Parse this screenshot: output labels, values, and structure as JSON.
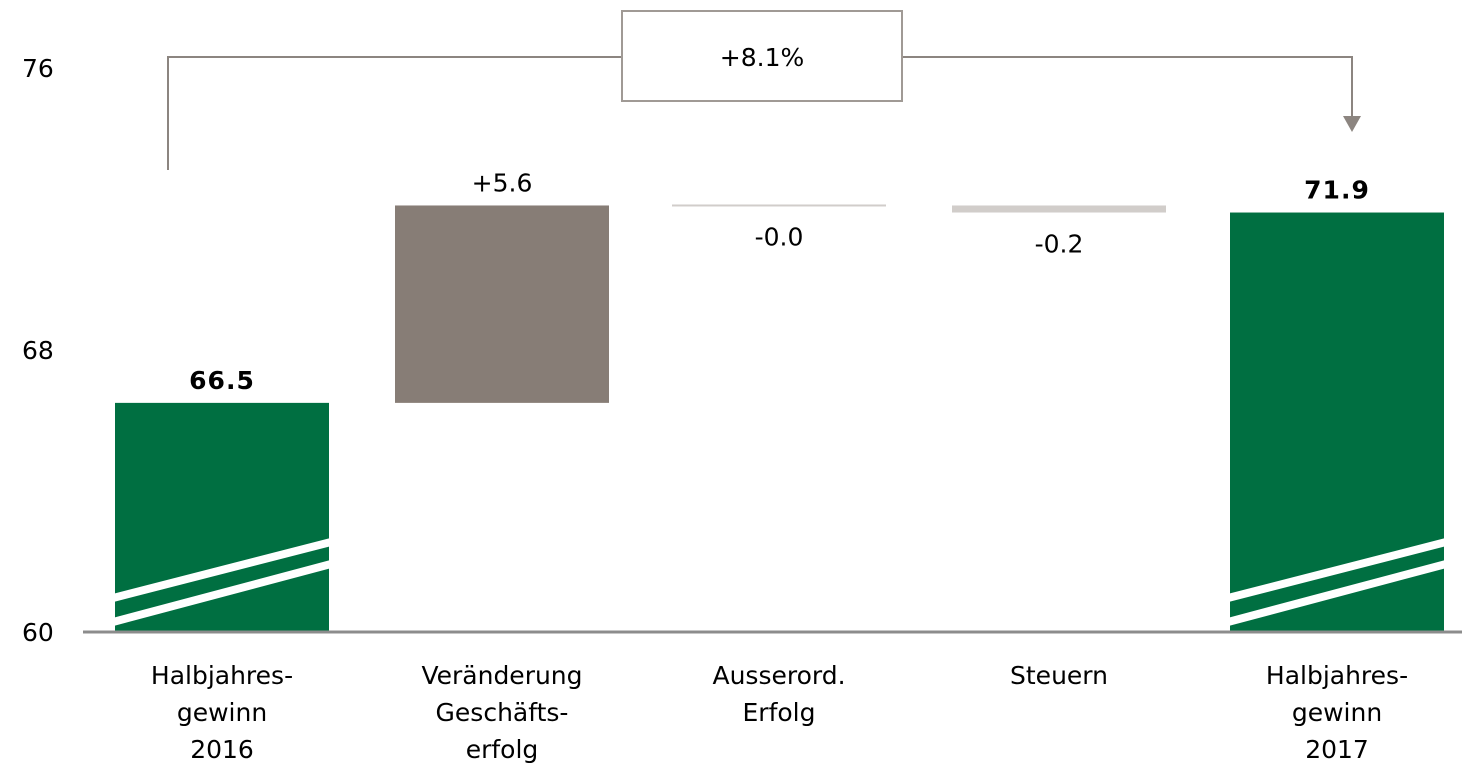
{
  "chart_data": {
    "type": "bar",
    "subtype": "waterfall",
    "categories": [
      [
        "Halbjahres-",
        "gewinn",
        "2016"
      ],
      [
        "Veränderung",
        "Geschäfts-",
        "erfolg"
      ],
      [
        "Ausserord.",
        "Erfolg"
      ],
      [
        "Steuern"
      ],
      [
        "Halbjahres-",
        "gewinn",
        "2017"
      ]
    ],
    "bars": [
      {
        "kind": "total",
        "start": 60,
        "end": 66.5,
        "label": "66.5",
        "broken_axis": true
      },
      {
        "kind": "delta",
        "start": 66.5,
        "end": 72.1,
        "label": "+5.6"
      },
      {
        "kind": "delta",
        "start": 72.1,
        "end": 72.1,
        "label": "-0.0"
      },
      {
        "kind": "delta",
        "start": 72.1,
        "end": 71.9,
        "label": "-0.2"
      },
      {
        "kind": "total",
        "start": 60,
        "end": 71.9,
        "label": "71.9",
        "broken_axis": true
      }
    ],
    "y_ticks": [
      {
        "value": 60,
        "label": "60"
      },
      {
        "value": 68,
        "label": "68"
      },
      {
        "value": 76,
        "label": "76"
      }
    ],
    "ylim": [
      60,
      76
    ],
    "grid": false,
    "annotation": {
      "label": "+8.1%",
      "from_category": 0,
      "to_category": 4
    },
    "colors": {
      "total": "#006f41",
      "increase": "#877d76",
      "decrease": "#d1cdca",
      "neutral": "#d1cdca",
      "axis": "#8c8c8c",
      "bracket": "#8c8580",
      "bracket_box": "#a09a95"
    }
  }
}
